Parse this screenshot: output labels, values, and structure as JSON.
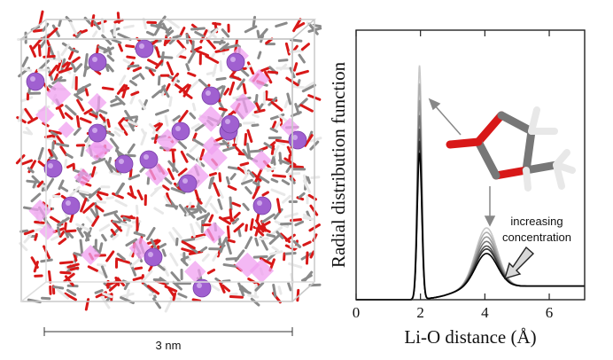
{
  "scale_bar": {
    "label": "3 nm"
  },
  "annotation": {
    "line1": "increasing",
    "line2": "concentration"
  },
  "chart_data": {
    "type": "line",
    "xlabel": "Li-O distance (Å)",
    "ylabel": "Radial distribution function",
    "xlim": [
      0,
      7.1
    ],
    "x_ticks": [
      "0",
      "2",
      "4",
      "6"
    ],
    "x_tick_values": [
      0,
      2,
      4,
      6
    ],
    "y_ticks": "none",
    "grid": false,
    "series": [
      {
        "peak1": 0.97,
        "peak2": 0.22,
        "color": "#000000"
      },
      {
        "peak1": 1.05,
        "peak2": 0.25,
        "color": "#333333"
      },
      {
        "peak1": 1.13,
        "peak2": 0.27,
        "color": "#555555"
      },
      {
        "peak1": 1.22,
        "peak2": 0.3,
        "color": "#777777"
      },
      {
        "peak1": 1.32,
        "peak2": 0.33,
        "color": "#999999"
      },
      {
        "peak1": 1.43,
        "peak2": 0.36,
        "color": "#b0b0b0"
      },
      {
        "peak1": 1.55,
        "peak2": 0.39,
        "color": "#c8c8c8"
      }
    ]
  },
  "colors": {
    "oxygen": "#d81818",
    "carbon": "#8a8a8a",
    "hydrogen": "#e8e8e8",
    "lithium": "#a060d0",
    "polyhedron": "#f0a0f0"
  },
  "icons": {
    "molecule": "propylene-carbonate-molecule-icon",
    "arrow": "concentration-arrow-icon"
  }
}
